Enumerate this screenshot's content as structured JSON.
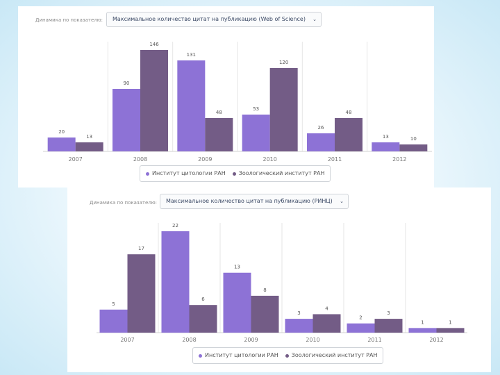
{
  "colors": {
    "series1": "#8d72d6",
    "series2": "#735c86",
    "grid": "#e6e6e6",
    "axis": "#d0d0d0"
  },
  "chart_data": [
    {
      "type": "bar",
      "param_label": "Динамика по показателю:",
      "select_value": "Максимальное количество цитат на публикацию (Web of Science)",
      "chevron_icon": "chevron-down-icon",
      "categories": [
        "2007",
        "2008",
        "2009",
        "2010",
        "2011",
        "2012"
      ],
      "series": [
        {
          "name": "Институт цитологии РАН",
          "values": [
            20,
            90,
            131,
            53,
            26,
            13
          ]
        },
        {
          "name": "Зоологический институт РАН",
          "values": [
            13,
            146,
            48,
            120,
            48,
            10
          ]
        }
      ],
      "value_labels": [
        [
          "20",
          "90",
          "131",
          "53",
          "26",
          "13"
        ],
        [
          "13",
          "146",
          "48",
          "120",
          "48",
          "10"
        ]
      ],
      "ylim": [
        0,
        146
      ],
      "grid": "vertical separators"
    },
    {
      "type": "bar",
      "param_label": "Динамика по показателю:",
      "select_value": "Максимальное количество цитат на публикацию (РИНЦ)",
      "chevron_icon": "chevron-down-icon",
      "categories": [
        "2007",
        "2008",
        "2009",
        "2010",
        "2011",
        "2012"
      ],
      "series": [
        {
          "name": "Институт цитологии РАН",
          "values": [
            5,
            22,
            13,
            3,
            2,
            1
          ]
        },
        {
          "name": "Зоологический институт РАН",
          "values": [
            17,
            6,
            8,
            4,
            3,
            1
          ]
        }
      ],
      "value_labels": [
        [
          "5",
          "22",
          "13",
          "3",
          "2",
          "1"
        ],
        [
          "17",
          "6",
          "8",
          "4",
          "3",
          "1"
        ]
      ],
      "ylim": [
        0,
        22
      ],
      "grid": "vertical separators"
    }
  ]
}
